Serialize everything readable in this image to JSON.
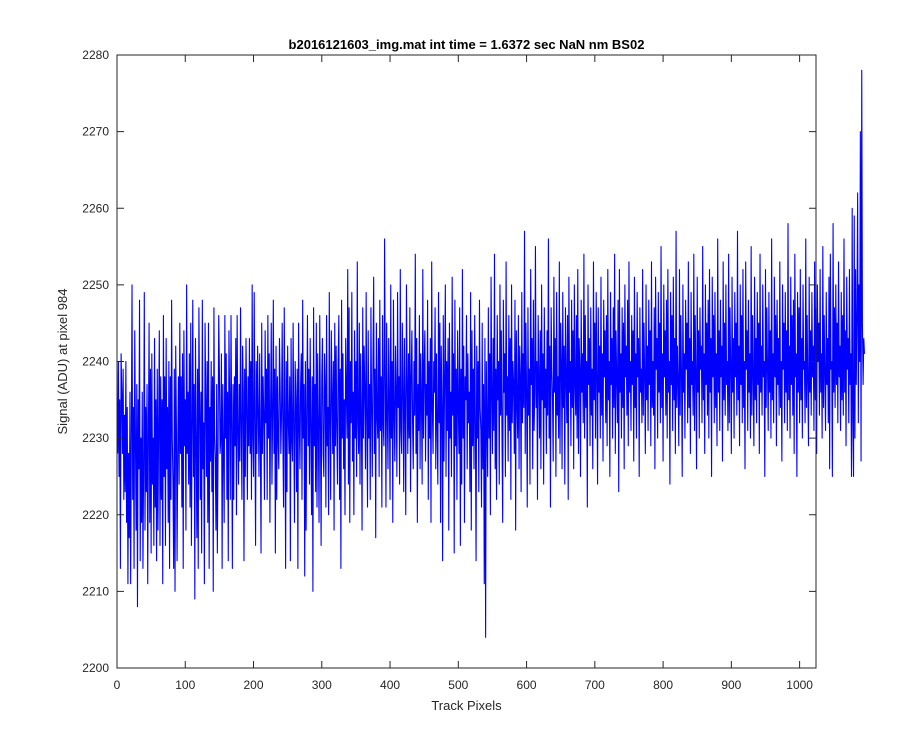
{
  "chart_data": {
    "type": "line",
    "title": "b2016121603_img.mat int time = 1.6372 sec  NaN nm BS02",
    "xlabel": "Track Pixels",
    "ylabel": "Signal (ADU) at pixel 984",
    "xlim": [
      0,
      1024
    ],
    "ylim": [
      2200,
      2280
    ],
    "xticks": [
      "0",
      "100",
      "200",
      "300",
      "400",
      "500",
      "600",
      "700",
      "800",
      "900",
      "1000"
    ],
    "yticks": [
      "2200",
      "2210",
      "2220",
      "2230",
      "2240",
      "2250",
      "2260",
      "2270",
      "2280"
    ],
    "grid": false,
    "legend": "none",
    "series": [
      {
        "color": "#0000ff",
        "x_start": 1,
        "x_step": 1,
        "n_points": 1024,
        "values": [
          2228,
          2240,
          2225,
          2235,
          2213,
          2241,
          2236,
          2228,
          2239,
          2222,
          2233,
          2223,
          2240,
          2219,
          2234,
          2211,
          2228,
          2217,
          2236,
          2211,
          2230,
          2250,
          2222,
          2234,
          2213,
          2244,
          2230,
          2218,
          2237,
          2208,
          2235,
          2226,
          2248,
          2214,
          2230,
          2219,
          2236,
          2213,
          2226,
          2249,
          2218,
          2234,
          2223,
          2237,
          2211,
          2230,
          2245,
          2219,
          2239,
          2215,
          2241,
          2224,
          2230,
          2216,
          2243,
          2221,
          2235,
          2214,
          2239,
          2218,
          2232,
          2244,
          2216,
          2238,
          2222,
          2235,
          2211,
          2246,
          2225,
          2238,
          2216,
          2243,
          2226,
          2234,
          2219,
          2240,
          2213,
          2238,
          2222,
          2248,
          2230,
          2224,
          2213,
          2239,
          2210,
          2242,
          2232,
          2214,
          2228,
          2238,
          2224,
          2245,
          2228,
          2238,
          2221,
          2241,
          2213,
          2244,
          2229,
          2235,
          2218,
          2250,
          2228,
          2236,
          2224,
          2241,
          2221,
          2245,
          2216,
          2231,
          2248,
          2225,
          2237,
          2209,
          2243,
          2230,
          2217,
          2239,
          2213,
          2247,
          2234,
          2222,
          2236,
          2215,
          2248,
          2226,
          2232,
          2211,
          2245,
          2235,
          2225,
          2240,
          2219,
          2245,
          2213,
          2234,
          2227,
          2240,
          2223,
          2238,
          2210,
          2247,
          2230,
          2227,
          2218,
          2237,
          2215,
          2228,
          2246,
          2239,
          2228,
          2230,
          2241,
          2213,
          2237,
          2228,
          2219,
          2246,
          2230,
          2241,
          2222,
          2236,
          2214,
          2244,
          2235,
          2222,
          2246,
          2232,
          2213,
          2237,
          2222,
          2238,
          2229,
          2243,
          2220,
          2246,
          2231,
          2224,
          2237,
          2227,
          2247,
          2231,
          2222,
          2242,
          2236,
          2214,
          2239,
          2225,
          2243,
          2234,
          2222,
          2238,
          2229,
          2243,
          2228,
          2240,
          2222,
          2250,
          2230,
          2225,
          2249,
          2232,
          2216,
          2240,
          2228,
          2242,
          2233,
          2225,
          2241,
          2230,
          2215,
          2245,
          2228,
          2238,
          2233,
          2222,
          2244,
          2232,
          2239,
          2222,
          2246,
          2230,
          2241,
          2219,
          2234,
          2245,
          2224,
          2233,
          2248,
          2228,
          2239,
          2215,
          2242,
          2222,
          2238,
          2230,
          2226,
          2243,
          2237,
          2228,
          2233,
          2245,
          2230,
          2221,
          2247,
          2234,
          2213,
          2240,
          2223,
          2242,
          2232,
          2228,
          2238,
          2214,
          2243,
          2230,
          2227,
          2245,
          2231,
          2219,
          2240,
          2235,
          2223,
          2239,
          2213,
          2245,
          2232,
          2226,
          2237,
          2241,
          2222,
          2248,
          2230,
          2237,
          2212,
          2240,
          2218,
          2233,
          2246,
          2229,
          2239,
          2224,
          2243,
          2232,
          2220,
          2238,
          2210,
          2247,
          2229,
          2237,
          2223,
          2245,
          2221,
          2241,
          2231,
          2219,
          2246,
          2233,
          2216,
          2238,
          2243,
          2228,
          2225,
          2241,
          2237,
          2221,
          2246,
          2229,
          2234,
          2220,
          2249,
          2232,
          2222,
          2244,
          2236,
          2228,
          2240,
          2218,
          2245,
          2229,
          2242,
          2231,
          2224,
          2240,
          2246,
          2222,
          2239,
          2213,
          2248,
          2230,
          2241,
          2226,
          2235,
          2220,
          2243,
          2236,
          2230,
          2252,
          2224,
          2247,
          2219,
          2240,
          2232,
          2249,
          2227,
          2236,
          2220,
          2244,
          2230,
          2240,
          2225,
          2253,
          2232,
          2228,
          2245,
          2224,
          2241,
          2233,
          2218,
          2247,
          2230,
          2242,
          2236,
          2226,
          2249,
          2232,
          2221,
          2244,
          2230,
          2237,
          2222,
          2247,
          2234,
          2225,
          2240,
          2251,
          2228,
          2239,
          2217,
          2245,
          2233,
          2230,
          2243,
          2225,
          2248,
          2231,
          2238,
          2221,
          2246,
          2232,
          2229,
          2256,
          2238,
          2221,
          2245,
          2233,
          2226,
          2243,
          2235,
          2222,
          2250,
          2230,
          2240,
          2219,
          2248,
          2233,
          2227,
          2242,
          2236,
          2225,
          2249,
          2234,
          2238,
          2224,
          2252,
          2231,
          2228,
          2245,
          2236,
          2223,
          2243,
          2234,
          2220,
          2250,
          2238,
          2228,
          2241,
          2230,
          2247,
          2223,
          2238,
          2244,
          2232,
          2226,
          2240,
          2233,
          2254,
          2228,
          2243,
          2219,
          2237,
          2231,
          2246,
          2226,
          2241,
          2235,
          2224,
          2252,
          2230,
          2239,
          2244,
          2227,
          2237,
          2233,
          2248,
          2222,
          2240,
          2230,
          2243,
          2219,
          2253,
          2234,
          2228,
          2240,
          2236,
          2247,
          2226,
          2241,
          2231,
          2224,
          2249,
          2232,
          2245,
          2219,
          2242,
          2234,
          2214,
          2246,
          2227,
          2238,
          2250,
          2225,
          2240,
          2231,
          2243,
          2218,
          2245,
          2230,
          2236,
          2225,
          2251,
          2233,
          2241,
          2215,
          2248,
          2229,
          2239,
          2222,
          2244,
          2234,
          2228,
          2247,
          2216,
          2239,
          2224,
          2252,
          2230,
          2242,
          2219,
          2238,
          2235,
          2246,
          2226,
          2241,
          2232,
          2236,
          2223,
          2249,
          2218,
          2244,
          2229,
          2239,
          2226,
          2246,
          2232,
          2214,
          2242,
          2230,
          2240,
          2223,
          2248,
          2234,
          2231,
          2221,
          2245,
          2226,
          2237,
          2211,
          2243,
          2204,
          2240,
          2232,
          2225,
          2247,
          2230,
          2241,
          2220,
          2251,
          2236,
          2228,
          2243,
          2231,
          2254,
          2226,
          2239,
          2222,
          2246,
          2235,
          2240,
          2224,
          2250,
          2233,
          2244,
          2230,
          2219,
          2248,
          2236,
          2241,
          2225,
          2253,
          2233,
          2238,
          2227,
          2246,
          2231,
          2243,
          2222,
          2250,
          2232,
          2240,
          2237,
          2228,
          2248,
          2218,
          2244,
          2235,
          2230,
          2246,
          2226,
          2242,
          2238,
          2223,
          2249,
          2232,
          2241,
          2234,
          2257,
          2228,
          2245,
          2236,
          2221,
          2247,
          2233,
          2239,
          2224,
          2252,
          2237,
          2243,
          2226,
          2248,
          2231,
          2236,
          2255,
          2234,
          2240,
          2222,
          2246,
          2238,
          2230,
          2244,
          2226,
          2250,
          2235,
          2241,
          2224,
          2247,
          2234,
          2239,
          2228,
          2244,
          2233,
          2256,
          2230,
          2242,
          2221,
          2247,
          2239,
          2235,
          2227,
          2251,
          2236,
          2243,
          2225,
          2249,
          2233,
          2238,
          2230,
          2253,
          2228,
          2245,
          2240,
          2226,
          2249,
          2234,
          2242,
          2224,
          2247,
          2238,
          2232,
          2246,
          2222,
          2251,
          2236,
          2240,
          2229,
          2248,
          2234,
          2244,
          2226,
          2250,
          2237,
          2233,
          2246,
          2230,
          2252,
          2228,
          2243,
          2239,
          2225,
          2248,
          2236,
          2241,
          2232,
          2254,
          2230,
          2246,
          2234,
          2240,
          2221,
          2250,
          2237,
          2243,
          2229,
          2247,
          2233,
          2239,
          2226,
          2253,
          2235,
          2245,
          2230,
          2249,
          2238,
          2224,
          2247,
          2236,
          2242,
          2230,
          2251,
          2233,
          2241,
          2227,
          2248,
          2238,
          2244,
          2232,
          2246,
          2229,
          2252,
          2235,
          2240,
          2225,
          2249,
          2237,
          2243,
          2230,
          2247,
          2234,
          2254,
          2228,
          2244,
          2238,
          2232,
          2248,
          2223,
          2252,
          2236,
          2241,
          2230,
          2247,
          2234,
          2245,
          2226,
          2250,
          2238,
          2242,
          2233,
          2248,
          2229,
          2253,
          2236,
          2240,
          2231,
          2246,
          2237,
          2244,
          2227,
          2251,
          2234,
          2241,
          2230,
          2249,
          2238,
          2243,
          2225,
          2247,
          2236,
          2239,
          2232,
          2252,
          2233,
          2245,
          2238,
          2228,
          2250,
          2235,
          2242,
          2231,
          2248,
          2237,
          2244,
          2229,
          2253,
          2234,
          2240,
          2233,
          2247,
          2226,
          2251,
          2239,
          2243,
          2230,
          2249,
          2236,
          2245,
          2232,
          2255,
          2234,
          2241,
          2227,
          2250,
          2238,
          2244,
          2233,
          2248,
          2230,
          2252,
          2236,
          2240,
          2224,
          2249,
          2237,
          2246,
          2231,
          2251,
          2235,
          2243,
          2228,
          2257,
          2234,
          2242,
          2237,
          2229,
          2252,
          2233,
          2246,
          2238,
          2225,
          2250,
          2236,
          2241,
          2230,
          2248,
          2239,
          2245,
          2232,
          2253,
          2234,
          2243,
          2228,
          2249,
          2237,
          2240,
          2233,
          2254,
          2231,
          2246,
          2238,
          2226,
          2251,
          2236,
          2244,
          2230,
          2247,
          2239,
          2242,
          2232,
          2255,
          2235,
          2241,
          2228,
          2250,
          2237,
          2245,
          2233,
          2248,
          2230,
          2252,
          2236,
          2243,
          2225,
          2251,
          2238,
          2246,
          2232,
          2249,
          2234,
          2241,
          2229,
          2256,
          2236,
          2244,
          2231,
          2248,
          2238,
          2242,
          2227,
          2253,
          2235,
          2245,
          2233,
          2250,
          2237,
          2240,
          2231,
          2254,
          2232,
          2247,
          2239,
          2228,
          2251,
          2236,
          2243,
          2230,
          2249,
          2238,
          2245,
          2233,
          2257,
          2235,
          2242,
          2229,
          2250,
          2237,
          2246,
          2232,
          2252,
          2234,
          2240,
          2226,
          2253,
          2239,
          2244,
          2231,
          2248,
          2236,
          2241,
          2230,
          2255,
          2233,
          2246,
          2238,
          2229,
          2251,
          2235,
          2243,
          2232,
          2249,
          2237,
          2245,
          2228,
          2254,
          2236,
          2242,
          2233,
          2250,
          2238,
          2240,
          2225,
          2252,
          2234,
          2247,
          2239,
          2231,
          2249,
          2236,
          2244,
          2230,
          2256,
          2235,
          2241,
          2232,
          2251,
          2238,
          2246,
          2229,
          2248,
          2237,
          2243,
          2233,
          2253,
          2234,
          2240,
          2227,
          2250,
          2239,
          2245,
          2232,
          2249,
          2236,
          2244,
          2231,
          2258,
          2235,
          2242,
          2230,
          2251,
          2237,
          2246,
          2233,
          2248,
          2228,
          2254,
          2238,
          2241,
          2225,
          2249,
          2236,
          2247,
          2232,
          2252,
          2235,
          2243,
          2230,
          2250,
          2239,
          2240,
          2232,
          2256,
          2234,
          2246,
          2237,
          2229,
          2251,
          2236,
          2244,
          2233,
          2249,
          2238,
          2242,
          2231,
          2253,
          2235,
          2247,
          2228,
          2250,
          2240,
          2245,
          2233,
          2252,
          2236,
          2241,
          2230,
          2255,
          2234,
          2246,
          2238,
          2231,
          2249,
          2237,
          2243,
          2232,
          2251,
          2226,
          2254,
          2239,
          2240,
          2225,
          2258,
          2236,
          2247,
          2234,
          2250,
          2237,
          2245,
          2232,
          2253,
          2238,
          2242,
          2231,
          2249,
          2235,
          2246,
          2233,
          2256,
          2236,
          2244,
          2229,
          2251,
          2239,
          2243,
          2232,
          2252,
          2237,
          2241,
          2225,
          2260,
          2232,
          2225,
          2259,
          2230,
          2252,
          2237,
          2246,
          2262,
          2232,
          2250,
          2240,
          2270,
          2227,
          2278,
          2245,
          2237,
          2243,
          2241
        ]
      }
    ]
  }
}
